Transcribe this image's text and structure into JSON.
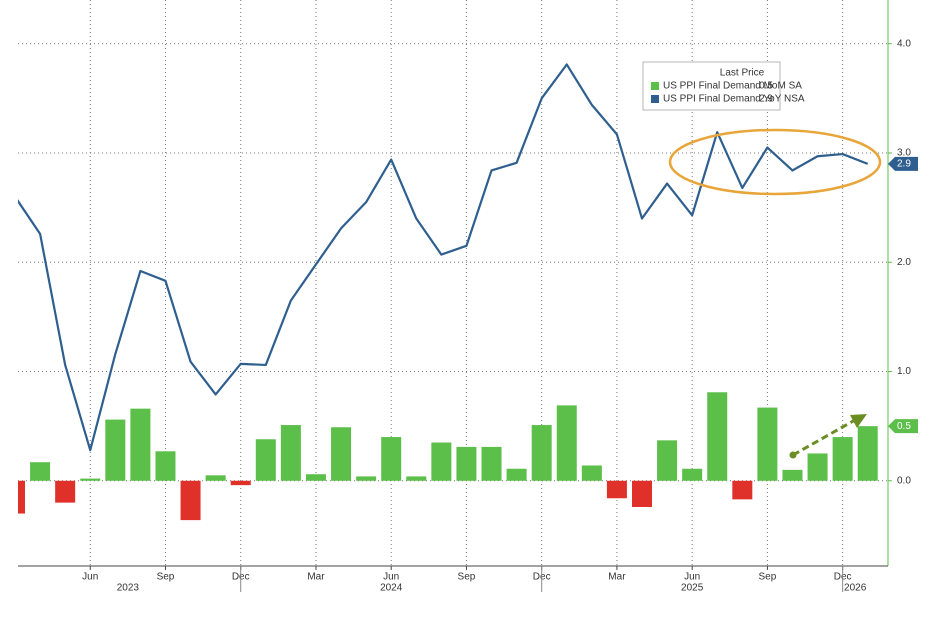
{
  "chart_data": {
    "type": "bar_line",
    "categories": [
      null,
      null,
      null,
      "Jun",
      null,
      null,
      "Sep",
      null,
      null,
      "Dec",
      null,
      null,
      "Mar",
      null,
      null,
      "Jun",
      null,
      null,
      "Sep",
      null,
      null,
      "Dec",
      null,
      null,
      "Mar",
      null,
      null,
      "Jun",
      null,
      null,
      "Sep",
      null,
      null,
      "Dec",
      null
    ],
    "year_labels": [
      "2023",
      "2024",
      "2025",
      "2026"
    ],
    "legend_title": "Last Price",
    "series": [
      {
        "name": "US PPI Final Demand MoM SA",
        "type": "bar",
        "color": "#5cbf4a",
        "negative_color": "#e0302a",
        "values": [
          -0.3,
          0.17,
          -0.2,
          0.02,
          0.56,
          0.66,
          0.27,
          -0.36,
          0.05,
          -0.04,
          0.38,
          0.51,
          0.06,
          0.49,
          0.04,
          0.4,
          0.04,
          0.35,
          0.31,
          0.31,
          0.11,
          0.51,
          0.69,
          0.14,
          -0.16,
          -0.24,
          0.37,
          0.11,
          0.81,
          -0.17,
          0.67,
          0.1,
          0.25,
          0.4,
          0.5
        ]
      },
      {
        "name": "US PPI Final Demand YoY NSA",
        "type": "line",
        "color": "#2f5f8f",
        "values": [
          2.6,
          2.26,
          1.06,
          0.28,
          1.16,
          1.92,
          1.83,
          1.09,
          0.79,
          1.07,
          1.06,
          1.65,
          1.98,
          2.31,
          2.55,
          2.94,
          2.4,
          2.07,
          2.15,
          2.84,
          2.91,
          3.5,
          3.81,
          3.44,
          3.17,
          2.4,
          2.72,
          2.43,
          3.19,
          2.68,
          3.05,
          2.84,
          2.97,
          2.99,
          2.9
        ]
      }
    ],
    "ylim": [
      -0.78,
      4.4
    ],
    "yticks": [
      {
        "value": 0,
        "label": "0.0"
      },
      {
        "value": 1,
        "label": "1.0"
      },
      {
        "value": 2,
        "label": "2.0"
      },
      {
        "value": 3,
        "label": "3.0"
      },
      {
        "value": 4,
        "label": "4.0"
      }
    ],
    "grid": true
  }
}
